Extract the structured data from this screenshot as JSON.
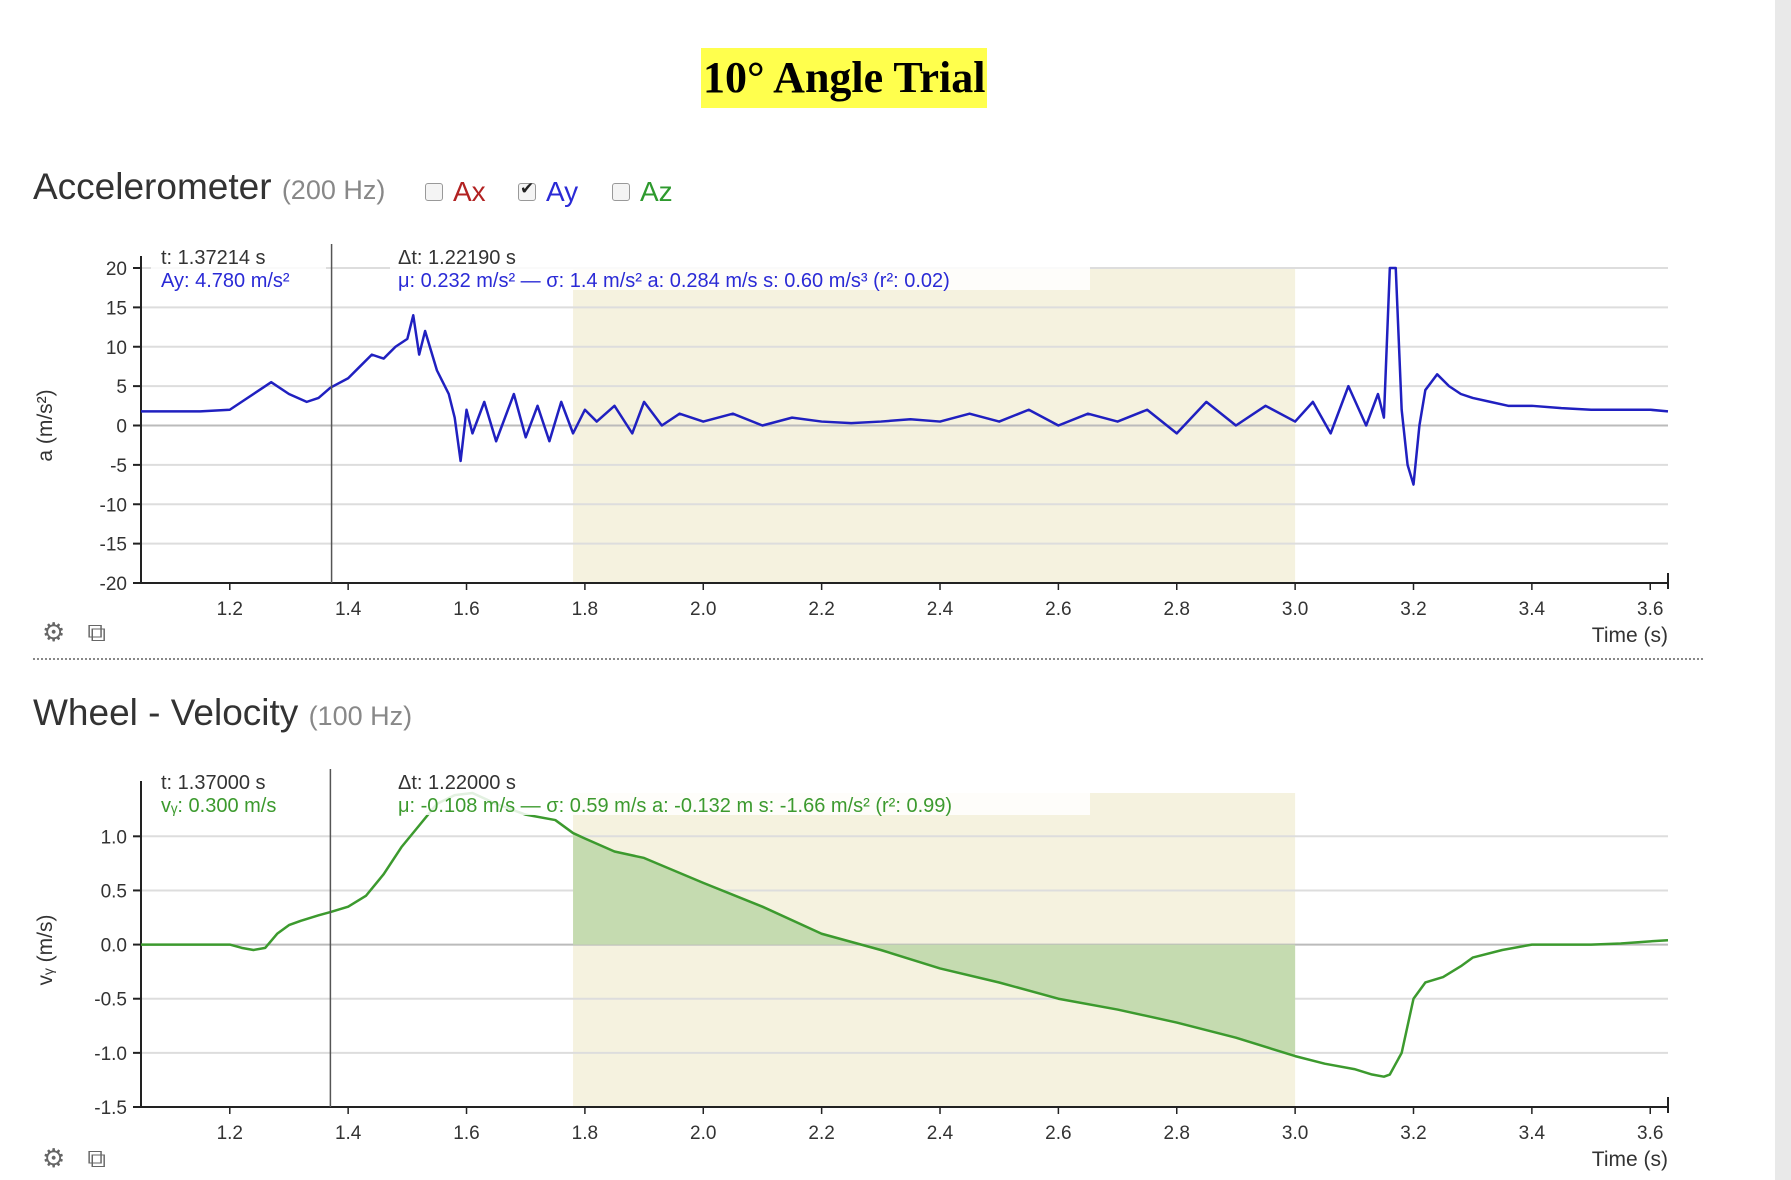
{
  "page_title": "10° Angle Trial",
  "accelerometer": {
    "title": "Accelerometer",
    "rate": "(200 Hz)",
    "checkboxes": [
      {
        "label": "Ax",
        "checked": false,
        "color": "#b22222"
      },
      {
        "label": "Ay",
        "checked": true,
        "color": "#2a2ad6"
      },
      {
        "label": "Az",
        "checked": false,
        "color": "#2e9a2e"
      }
    ],
    "cursor_readout": {
      "time": "t: 1.37214 s",
      "value": "Ay: 4.780 m/s²"
    },
    "selection_readout": {
      "dt": "Δt: 1.22190 s",
      "stats": "μ: 0.232 m/s² — σ: 1.4 m/s²   a: 0.284 m/s   s: 0.60 m/s³ (r²: 0.02)"
    },
    "icons": [
      "gear-icon",
      "popout-icon"
    ]
  },
  "velocity": {
    "title": "Wheel - Velocity",
    "rate": "(100 Hz)",
    "cursor_readout": {
      "time": "t: 1.37000 s",
      "value": "vᵧ: 0.300 m/s"
    },
    "selection_readout": {
      "dt": "Δt: 1.22000 s",
      "stats": "μ: -0.108 m/s — σ: 0.59 m/s   a: -0.132 m   s: -1.66 m/s² (r²: 0.99)"
    },
    "icons": [
      "gear-icon",
      "popout-icon"
    ]
  },
  "chart_data": [
    {
      "type": "line",
      "name": "accelerometer",
      "xlabel": "Time (s)",
      "ylabel": "a (m/s²)",
      "xlim": [
        1.05,
        3.63
      ],
      "ylim": [
        -20,
        20
      ],
      "xticks": [
        1.2,
        1.4,
        1.6,
        1.8,
        2.0,
        2.2,
        2.4,
        2.6,
        2.8,
        3.0,
        3.2,
        3.4,
        3.6
      ],
      "xtick_labels": [
        "1.2",
        "1.4",
        "1.6",
        "1.8",
        "2.0",
        "2.2",
        "2.4",
        "2.6",
        "2.8",
        "3.0",
        "3.2",
        "3.4",
        "3.6"
      ],
      "yticks": [
        20,
        15,
        10,
        5,
        0,
        -5,
        -10,
        -15,
        -20
      ],
      "ytick_labels": [
        "20",
        "15",
        "10",
        "5",
        "0",
        "-5",
        "-10",
        "-15",
        "-20"
      ],
      "grid": true,
      "selection": [
        1.78,
        3.0
      ],
      "cursor_x": 1.372,
      "series": [
        {
          "color": "#2020c0",
          "x": [
            1.05,
            1.1,
            1.15,
            1.2,
            1.22,
            1.25,
            1.27,
            1.3,
            1.33,
            1.35,
            1.37,
            1.4,
            1.42,
            1.44,
            1.46,
            1.48,
            1.5,
            1.51,
            1.52,
            1.53,
            1.55,
            1.57,
            1.58,
            1.59,
            1.6,
            1.61,
            1.63,
            1.65,
            1.68,
            1.7,
            1.72,
            1.74,
            1.76,
            1.78,
            1.8,
            1.82,
            1.85,
            1.88,
            1.9,
            1.93,
            1.96,
            2.0,
            2.05,
            2.1,
            2.15,
            2.2,
            2.25,
            2.3,
            2.35,
            2.4,
            2.45,
            2.5,
            2.55,
            2.6,
            2.65,
            2.7,
            2.75,
            2.8,
            2.85,
            2.9,
            2.95,
            3.0,
            3.03,
            3.06,
            3.09,
            3.12,
            3.14,
            3.15,
            3.16,
            3.17,
            3.18,
            3.19,
            3.2,
            3.21,
            3.22,
            3.24,
            3.26,
            3.28,
            3.3,
            3.33,
            3.36,
            3.4,
            3.45,
            3.5,
            3.55,
            3.6,
            3.63
          ],
          "y": [
            1.8,
            1.8,
            1.8,
            2.0,
            3.0,
            4.5,
            5.5,
            4.0,
            3.0,
            3.5,
            4.8,
            6.0,
            7.5,
            9.0,
            8.5,
            10.0,
            11.0,
            14.0,
            9.0,
            12.0,
            7.0,
            4.0,
            1.0,
            -4.5,
            2.0,
            -1.0,
            3.0,
            -2.0,
            4.0,
            -1.5,
            2.5,
            -2.0,
            3.0,
            -1.0,
            2.0,
            0.5,
            2.5,
            -1.0,
            3.0,
            0.0,
            1.5,
            0.5,
            1.5,
            0.0,
            1.0,
            0.5,
            0.3,
            0.5,
            0.8,
            0.5,
            1.5,
            0.5,
            2.0,
            0.0,
            1.5,
            0.5,
            2.0,
            -1.0,
            3.0,
            0.0,
            2.5,
            0.5,
            3.0,
            -1.0,
            5.0,
            0.0,
            4.0,
            1.0,
            20.0,
            20.0,
            2.0,
            -5.0,
            -7.5,
            0.0,
            4.5,
            6.5,
            5.0,
            4.0,
            3.5,
            3.0,
            2.5,
            2.5,
            2.2,
            2.0,
            2.0,
            2.0,
            1.8
          ]
        }
      ]
    },
    {
      "type": "area",
      "name": "velocity",
      "xlabel": "Time (s)",
      "ylabel": "vᵧ (m/s)",
      "xlim": [
        1.05,
        3.63
      ],
      "ylim": [
        -1.5,
        1.4
      ],
      "xticks": [
        1.2,
        1.4,
        1.6,
        1.8,
        2.0,
        2.2,
        2.4,
        2.6,
        2.8,
        3.0,
        3.2,
        3.4,
        3.6
      ],
      "xtick_labels": [
        "1.2",
        "1.4",
        "1.6",
        "1.8",
        "2.0",
        "2.2",
        "2.4",
        "2.6",
        "2.8",
        "3.0",
        "3.2",
        "3.4",
        "3.6"
      ],
      "yticks": [
        1.0,
        0.5,
        0.0,
        -0.5,
        -1.0,
        -1.5
      ],
      "ytick_labels": [
        "1.0",
        "0.5",
        "0.0",
        "-0.5",
        "-1.0",
        "-1.5"
      ],
      "grid": true,
      "selection": [
        1.78,
        3.0
      ],
      "cursor_x": 1.37,
      "series": [
        {
          "color": "#3c9a2e",
          "fill": "#c5dbb0",
          "x": [
            1.05,
            1.1,
            1.15,
            1.2,
            1.22,
            1.24,
            1.26,
            1.28,
            1.3,
            1.32,
            1.35,
            1.37,
            1.4,
            1.43,
            1.46,
            1.49,
            1.52,
            1.55,
            1.58,
            1.61,
            1.65,
            1.7,
            1.75,
            1.78,
            1.8,
            1.85,
            1.9,
            2.0,
            2.1,
            2.2,
            2.3,
            2.4,
            2.5,
            2.6,
            2.7,
            2.8,
            2.9,
            3.0,
            3.05,
            3.1,
            3.13,
            3.15,
            3.16,
            3.18,
            3.2,
            3.22,
            3.25,
            3.28,
            3.3,
            3.35,
            3.4,
            3.45,
            3.5,
            3.55,
            3.6,
            3.63
          ],
          "y": [
            0.0,
            0.0,
            0.0,
            0.0,
            -0.03,
            -0.05,
            -0.03,
            0.1,
            0.18,
            0.22,
            0.27,
            0.3,
            0.35,
            0.45,
            0.65,
            0.9,
            1.1,
            1.3,
            1.38,
            1.4,
            1.3,
            1.2,
            1.15,
            1.03,
            0.98,
            0.86,
            0.8,
            0.57,
            0.35,
            0.1,
            -0.05,
            -0.22,
            -0.35,
            -0.5,
            -0.6,
            -0.72,
            -0.86,
            -1.03,
            -1.1,
            -1.15,
            -1.2,
            -1.22,
            -1.2,
            -1.0,
            -0.5,
            -0.35,
            -0.3,
            -0.2,
            -0.12,
            -0.05,
            0.0,
            0.0,
            0.0,
            0.01,
            0.03,
            0.04
          ]
        }
      ]
    }
  ]
}
